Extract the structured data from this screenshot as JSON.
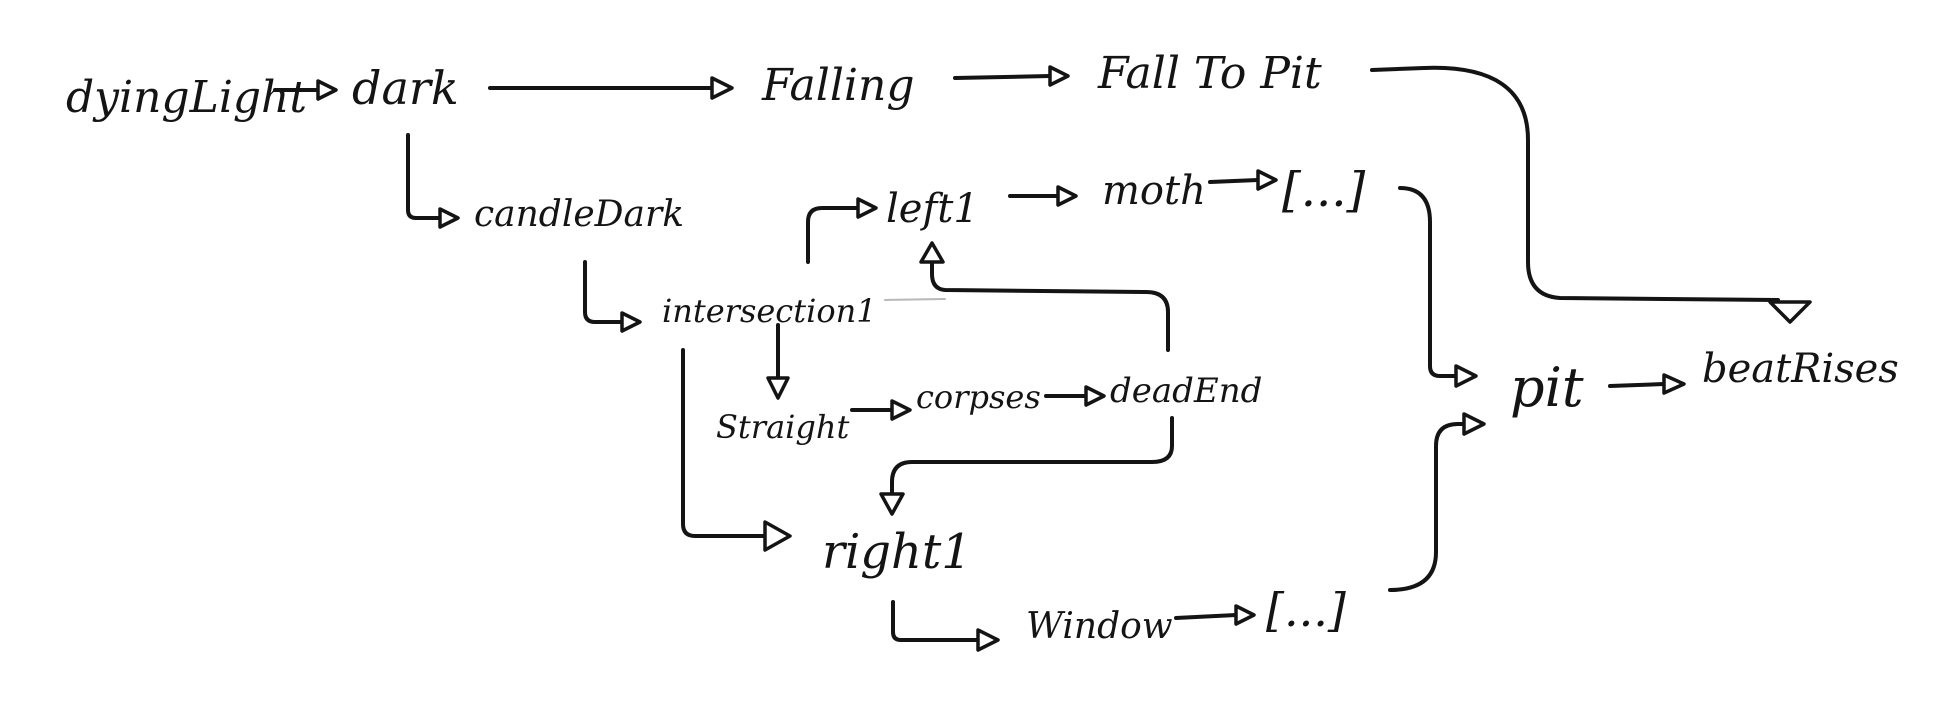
{
  "diagram": {
    "ink_color": "#141414",
    "paper_color": "#ffffff",
    "nodes": {
      "dying_light": "dyingLight",
      "dark": "dark",
      "falling": "Falling",
      "fall_to_pit": "Fall To Pit",
      "candle_dark": "candleDark",
      "left1": "left1",
      "moth": "moth",
      "moth_continuation": "[...]",
      "intersection1": "intersection1",
      "straight": "Straight",
      "corpses": "corpses",
      "dead_end": "deadEnd",
      "right1": "right1",
      "window": "Window",
      "window_continuation": "[...]",
      "pit": "pit",
      "beat_rises": "beatRises"
    },
    "edges": [
      {
        "from": "dyingLight",
        "to": "dark"
      },
      {
        "from": "dark",
        "to": "Falling"
      },
      {
        "from": "Falling",
        "to": "Fall To Pit"
      },
      {
        "from": "dark",
        "to": "candleDark"
      },
      {
        "from": "candleDark",
        "to": "intersection1"
      },
      {
        "from": "intersection1",
        "to": "left1"
      },
      {
        "from": "left1",
        "to": "moth"
      },
      {
        "from": "moth",
        "to": "[...]"
      },
      {
        "from": "intersection1",
        "to": "Straight"
      },
      {
        "from": "Straight",
        "to": "corpses"
      },
      {
        "from": "corpses",
        "to": "deadEnd"
      },
      {
        "from": "deadEnd",
        "to": "left1"
      },
      {
        "from": "deadEnd",
        "to": "right1"
      },
      {
        "from": "intersection1",
        "to": "right1"
      },
      {
        "from": "right1",
        "to": "Window"
      },
      {
        "from": "Window",
        "to": "[...]"
      },
      {
        "from": "[...] (moth)",
        "to": "pit"
      },
      {
        "from": "[...] (Window)",
        "to": "pit"
      },
      {
        "from": "Fall To Pit",
        "to": "beatRises"
      },
      {
        "from": "pit",
        "to": "beatRises"
      }
    ]
  }
}
